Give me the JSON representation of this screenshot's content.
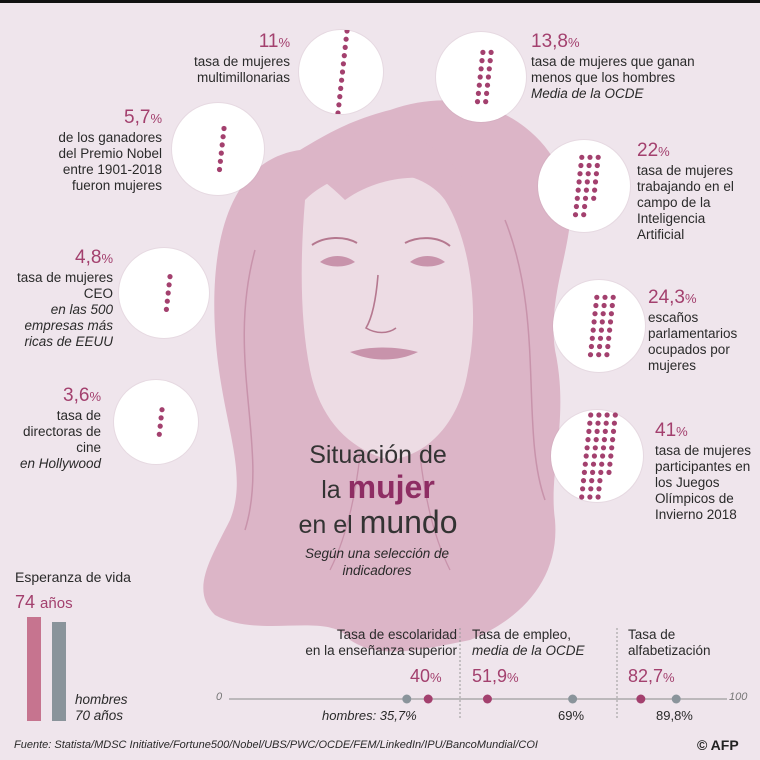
{
  "chart_data": {
    "type": "infographic",
    "title_parts": [
      "Situación de",
      "la",
      "mujer",
      "en el",
      "mundo"
    ],
    "subtitle": "Según una selección de indicadores",
    "indicators": [
      {
        "value": 11,
        "value_label": "11",
        "unit": "%",
        "text": "tasa de mujeres multimillonarias",
        "note": ""
      },
      {
        "value": 5.7,
        "value_label": "5,7",
        "unit": "%",
        "text": "de los ganadores del Premio Nobel entre 1901-2018 fueron mujeres",
        "note": ""
      },
      {
        "value": 4.8,
        "value_label": "4,8",
        "unit": "%",
        "text": "tasa de mujeres CEO",
        "note": "en las 500 empresas más ricas de EEUU"
      },
      {
        "value": 3.6,
        "value_label": "3,6",
        "unit": "%",
        "text": "tasa de directoras de cine",
        "note": "en Hollywood"
      },
      {
        "value": 13.8,
        "value_label": "13,8",
        "unit": "%",
        "text": "tasa de mujeres que ganan menos que los hombres",
        "note": "Media de la OCDE"
      },
      {
        "value": 22,
        "value_label": "22",
        "unit": "%",
        "text": "tasa de mujeres trabajando en el campo de la Inteligencia Artificial",
        "note": ""
      },
      {
        "value": 24.3,
        "value_label": "24,3",
        "unit": "%",
        "text": "escaños parlamentarios ocupados por mujeres",
        "note": ""
      },
      {
        "value": 41,
        "value_label": "41",
        "unit": "%",
        "text": "tasa de mujeres participantes en los Juegos Olímpicos de Invierno 2018",
        "note": ""
      }
    ],
    "life_expectancy": {
      "label": "Esperanza de vida",
      "women": 74,
      "women_label": "74",
      "women_unit": "años",
      "men": 70,
      "men_label": "hombres",
      "men_value_label": "70 años"
    },
    "axes": {
      "range": [
        0,
        100
      ],
      "tick_min": "0",
      "tick_max": "100",
      "items": [
        {
          "title": "Tasa de escolaridad en la enseñanza superior",
          "title_lines": [
            "Tasa de escolaridad",
            "en la enseñanza superior"
          ],
          "note": "",
          "women": 40,
          "women_label": "40",
          "men": 35.7,
          "men_label": "hombres: 35,7%"
        },
        {
          "title": "Tasa de empleo,",
          "title_lines": [
            "Tasa de empleo,"
          ],
          "note": "media de la OCDE",
          "women": 51.9,
          "women_label": "51,9",
          "men": 69,
          "men_label": "69%"
        },
        {
          "title": "Tasa de alfabetización",
          "title_lines": [
            "Tasa de",
            "alfabetización"
          ],
          "note": "",
          "women": 82.7,
          "women_label": "82,7",
          "men": 89.8,
          "men_label": "89,8%"
        }
      ]
    },
    "colors": {
      "women": "#a3406e",
      "men": "#8a949b",
      "women_bar": "#c6748f",
      "face": "#dcb5c7"
    },
    "source": "Fuente: Statista/MDSC Initiative/Fortune500/Nobel/UBS/PWC/OCDE/FEM/LinkedIn/IPU/BancoMundial/COI",
    "logo": "© AFP"
  }
}
